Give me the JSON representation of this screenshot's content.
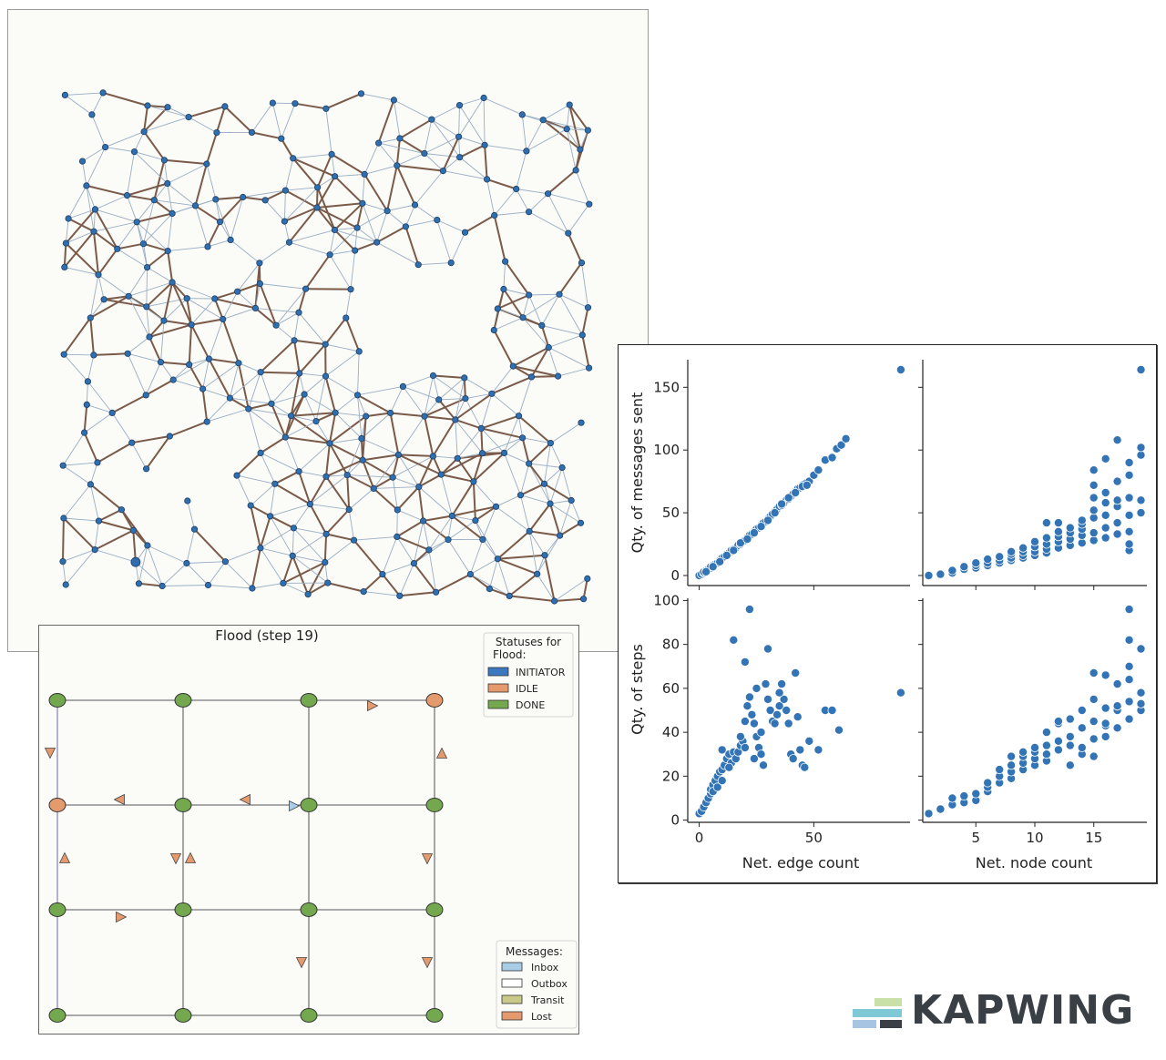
{
  "network": {
    "node_color": "#2f6fb0",
    "edge_tree_color": "#7a5a48",
    "edge_other_color": "#9aaec4"
  },
  "flood": {
    "title": "Flood (step 19)",
    "status_legend": {
      "title_line1": "Statuses for",
      "title_line2": "Flood:",
      "items": [
        {
          "label": "INITIATOR",
          "color": "#3b78c0"
        },
        {
          "label": "IDLE",
          "color": "#e59a6e"
        },
        {
          "label": "DONE",
          "color": "#73a84e"
        }
      ]
    },
    "message_legend": {
      "title": "Messages:",
      "items": [
        {
          "label": "Inbox",
          "color": "#a9cde6"
        },
        {
          "label": "Outbox",
          "color": "#ffffff"
        },
        {
          "label": "Transit",
          "color": "#c9c98a"
        },
        {
          "label": "Lost",
          "color": "#e59a6e"
        }
      ]
    },
    "node_statuses": [
      [
        "DONE",
        "DONE",
        "DONE",
        "IDLE"
      ],
      [
        "IDLE",
        "DONE",
        "DONE",
        "DONE"
      ],
      [
        "DONE",
        "DONE",
        "DONE",
        "DONE"
      ],
      [
        "DONE",
        "DONE",
        "DONE",
        "DONE"
      ]
    ]
  },
  "chart_data": [
    {
      "type": "scatter",
      "title": "",
      "xlabel": "",
      "ylabel": "Qty. of messages sent",
      "xlim": [
        -5,
        92
      ],
      "ylim": [
        -8,
        172
      ],
      "yticks": [
        "0",
        "50",
        "100",
        "150"
      ],
      "color": "#3274b5",
      "points": [
        [
          0,
          0
        ],
        [
          1,
          1
        ],
        [
          2,
          2
        ],
        [
          2,
          3
        ],
        [
          3,
          4
        ],
        [
          4,
          5
        ],
        [
          5,
          6
        ],
        [
          5,
          7
        ],
        [
          6,
          8
        ],
        [
          7,
          9
        ],
        [
          8,
          10
        ],
        [
          9,
          12
        ],
        [
          10,
          14
        ],
        [
          11,
          15
        ],
        [
          12,
          17
        ],
        [
          13,
          18
        ],
        [
          14,
          20
        ],
        [
          15,
          21
        ],
        [
          16,
          22
        ],
        [
          17,
          24
        ],
        [
          18,
          25
        ],
        [
          19,
          27
        ],
        [
          20,
          28
        ],
        [
          21,
          30
        ],
        [
          22,
          32
        ],
        [
          23,
          33
        ],
        [
          24,
          35
        ],
        [
          25,
          37
        ],
        [
          26,
          38
        ],
        [
          27,
          40
        ],
        [
          28,
          42
        ],
        [
          29,
          43
        ],
        [
          30,
          45
        ],
        [
          31,
          47
        ],
        [
          32,
          49
        ],
        [
          33,
          51
        ],
        [
          34,
          53
        ],
        [
          35,
          55
        ],
        [
          36,
          56
        ],
        [
          37,
          58
        ],
        [
          38,
          60
        ],
        [
          39,
          61
        ],
        [
          40,
          63
        ],
        [
          41,
          65
        ],
        [
          42,
          67
        ],
        [
          43,
          69
        ],
        [
          44,
          70
        ],
        [
          45,
          72
        ],
        [
          46,
          73
        ],
        [
          47,
          74
        ],
        [
          48,
          75
        ],
        [
          50,
          80
        ],
        [
          52,
          84
        ],
        [
          55,
          92
        ],
        [
          58,
          94
        ],
        [
          60,
          101
        ],
        [
          62,
          104
        ],
        [
          64,
          109
        ],
        [
          3,
          3
        ],
        [
          6,
          7
        ],
        [
          9,
          11
        ],
        [
          12,
          16
        ],
        [
          15,
          20
        ],
        [
          18,
          26
        ],
        [
          21,
          29
        ],
        [
          24,
          34
        ],
        [
          27,
          39
        ],
        [
          30,
          44
        ],
        [
          33,
          50
        ],
        [
          36,
          57
        ],
        [
          39,
          62
        ],
        [
          42,
          66
        ],
        [
          45,
          71
        ],
        [
          47,
          72
        ],
        [
          88,
          164
        ]
      ]
    },
    {
      "type": "scatter",
      "title": "",
      "xlabel": "",
      "ylabel": "",
      "xlim": [
        0.5,
        19.5
      ],
      "ylim": [
        -8,
        172
      ],
      "color": "#3274b5",
      "points": [
        [
          1,
          0
        ],
        [
          2,
          1
        ],
        [
          3,
          2
        ],
        [
          3,
          4
        ],
        [
          4,
          5
        ],
        [
          4,
          7
        ],
        [
          5,
          6
        ],
        [
          5,
          8
        ],
        [
          5,
          10
        ],
        [
          6,
          8
        ],
        [
          6,
          10
        ],
        [
          6,
          13
        ],
        [
          7,
          10
        ],
        [
          7,
          12
        ],
        [
          7,
          15
        ],
        [
          8,
          12
        ],
        [
          8,
          14
        ],
        [
          8,
          17
        ],
        [
          8,
          19
        ],
        [
          9,
          14
        ],
        [
          9,
          16
        ],
        [
          9,
          19
        ],
        [
          9,
          22
        ],
        [
          10,
          16
        ],
        [
          10,
          19
        ],
        [
          10,
          23
        ],
        [
          10,
          27
        ],
        [
          11,
          18
        ],
        [
          11,
          21
        ],
        [
          11,
          25
        ],
        [
          11,
          30
        ],
        [
          11,
          42
        ],
        [
          12,
          22
        ],
        [
          12,
          27
        ],
        [
          12,
          31
        ],
        [
          12,
          35
        ],
        [
          12,
          42
        ],
        [
          13,
          24
        ],
        [
          13,
          29
        ],
        [
          13,
          34
        ],
        [
          13,
          38
        ],
        [
          14,
          26
        ],
        [
          14,
          32
        ],
        [
          14,
          37
        ],
        [
          14,
          41
        ],
        [
          14,
          44
        ],
        [
          15,
          28
        ],
        [
          15,
          34
        ],
        [
          15,
          46
        ],
        [
          15,
          52
        ],
        [
          15,
          62
        ],
        [
          15,
          72
        ],
        [
          15,
          84
        ],
        [
          16,
          30
        ],
        [
          16,
          38
        ],
        [
          16,
          48
        ],
        [
          16,
          58
        ],
        [
          16,
          66
        ],
        [
          16,
          93
        ],
        [
          17,
          33
        ],
        [
          17,
          42
        ],
        [
          17,
          55
        ],
        [
          17,
          60
        ],
        [
          17,
          75
        ],
        [
          17,
          108
        ],
        [
          18,
          20
        ],
        [
          18,
          25
        ],
        [
          18,
          35
        ],
        [
          18,
          48
        ],
        [
          18,
          62
        ],
        [
          18,
          80
        ],
        [
          18,
          90
        ],
        [
          19,
          50
        ],
        [
          19,
          60
        ],
        [
          19,
          96
        ],
        [
          19,
          102
        ],
        [
          19,
          164
        ]
      ]
    },
    {
      "type": "scatter",
      "title": "",
      "xlabel": "Net. edge count",
      "ylabel": "Qty. of steps",
      "xlim": [
        -5,
        92
      ],
      "ylim": [
        -1,
        101
      ],
      "xticks": [
        "0",
        "50"
      ],
      "yticks": [
        "0",
        "20",
        "40",
        "60",
        "80",
        "100"
      ],
      "color": "#3274b5",
      "points": [
        [
          0,
          3
        ],
        [
          1,
          4
        ],
        [
          2,
          6
        ],
        [
          3,
          8
        ],
        [
          4,
          10
        ],
        [
          5,
          12
        ],
        [
          5,
          14
        ],
        [
          6,
          16
        ],
        [
          6,
          13
        ],
        [
          7,
          18
        ],
        [
          8,
          20
        ],
        [
          8,
          15
        ],
        [
          9,
          22
        ],
        [
          10,
          23
        ],
        [
          10,
          18
        ],
        [
          11,
          25
        ],
        [
          12,
          28
        ],
        [
          13,
          30
        ],
        [
          14,
          26
        ],
        [
          15,
          31
        ],
        [
          16,
          28
        ],
        [
          17,
          31
        ],
        [
          18,
          34
        ],
        [
          19,
          36
        ],
        [
          20,
          33
        ],
        [
          20,
          45
        ],
        [
          21,
          52
        ],
        [
          22,
          56
        ],
        [
          23,
          48
        ],
        [
          24,
          44
        ],
        [
          25,
          38
        ],
        [
          26,
          33
        ],
        [
          27,
          30
        ],
        [
          28,
          25
        ],
        [
          29,
          62
        ],
        [
          30,
          55
        ],
        [
          31,
          50
        ],
        [
          32,
          45
        ],
        [
          33,
          44
        ],
        [
          34,
          48
        ],
        [
          35,
          52
        ],
        [
          36,
          62
        ],
        [
          37,
          55
        ],
        [
          38,
          50
        ],
        [
          39,
          44
        ],
        [
          40,
          30
        ],
        [
          41,
          28
        ],
        [
          42,
          67
        ],
        [
          43,
          47
        ],
        [
          44,
          32
        ],
        [
          45,
          25
        ],
        [
          46,
          24
        ],
        [
          48,
          36
        ],
        [
          52,
          32
        ],
        [
          55,
          50
        ],
        [
          58,
          50
        ],
        [
          61,
          41
        ],
        [
          15,
          82
        ],
        [
          20,
          72
        ],
        [
          22,
          96
        ],
        [
          30,
          78
        ],
        [
          25,
          60
        ],
        [
          35,
          58
        ],
        [
          88,
          58
        ],
        [
          10,
          32
        ],
        [
          13,
          24
        ],
        [
          18,
          38
        ],
        [
          24,
          28
        ],
        [
          27,
          40
        ]
      ]
    },
    {
      "type": "scatter",
      "title": "",
      "xlabel": "Net. node count",
      "ylabel": "",
      "xlim": [
        0.5,
        19.5
      ],
      "ylim": [
        -1,
        101
      ],
      "xticks": [
        "5",
        "10",
        "15"
      ],
      "color": "#3274b5",
      "points": [
        [
          1,
          3
        ],
        [
          2,
          5
        ],
        [
          3,
          7
        ],
        [
          3,
          10
        ],
        [
          4,
          8
        ],
        [
          4,
          11
        ],
        [
          5,
          9
        ],
        [
          5,
          12
        ],
        [
          6,
          13
        ],
        [
          6,
          15
        ],
        [
          6,
          17
        ],
        [
          7,
          17
        ],
        [
          7,
          20
        ],
        [
          7,
          23
        ],
        [
          8,
          19
        ],
        [
          8,
          22
        ],
        [
          8,
          25
        ],
        [
          8,
          29
        ],
        [
          9,
          23
        ],
        [
          9,
          26
        ],
        [
          9,
          29
        ],
        [
          9,
          31
        ],
        [
          10,
          25
        ],
        [
          10,
          28
        ],
        [
          10,
          31
        ],
        [
          10,
          33
        ],
        [
          11,
          27
        ],
        [
          11,
          30
        ],
        [
          11,
          34
        ],
        [
          11,
          40
        ],
        [
          12,
          32
        ],
        [
          12,
          36
        ],
        [
          12,
          44
        ],
        [
          12,
          45
        ],
        [
          13,
          25
        ],
        [
          13,
          34
        ],
        [
          13,
          38
        ],
        [
          13,
          46
        ],
        [
          14,
          30
        ],
        [
          14,
          33
        ],
        [
          14,
          42
        ],
        [
          14,
          50
        ],
        [
          15,
          29
        ],
        [
          15,
          37
        ],
        [
          15,
          45
        ],
        [
          15,
          55
        ],
        [
          15,
          67
        ],
        [
          16,
          38
        ],
        [
          16,
          43
        ],
        [
          16,
          51
        ],
        [
          16,
          66
        ],
        [
          16,
          44
        ],
        [
          17,
          42
        ],
        [
          17,
          50
        ],
        [
          17,
          52
        ],
        [
          17,
          62
        ],
        [
          18,
          46
        ],
        [
          18,
          54
        ],
        [
          18,
          64
        ],
        [
          18,
          70
        ],
        [
          18,
          82
        ],
        [
          18,
          96
        ],
        [
          19,
          50
        ],
        [
          19,
          53
        ],
        [
          19,
          58
        ],
        [
          19,
          78
        ]
      ]
    }
  ],
  "brand": {
    "text": "KAPWING",
    "colors": [
      "#c9e0a8",
      "#7fc8d6",
      "#a7c4e0",
      "#3a3f45"
    ]
  }
}
